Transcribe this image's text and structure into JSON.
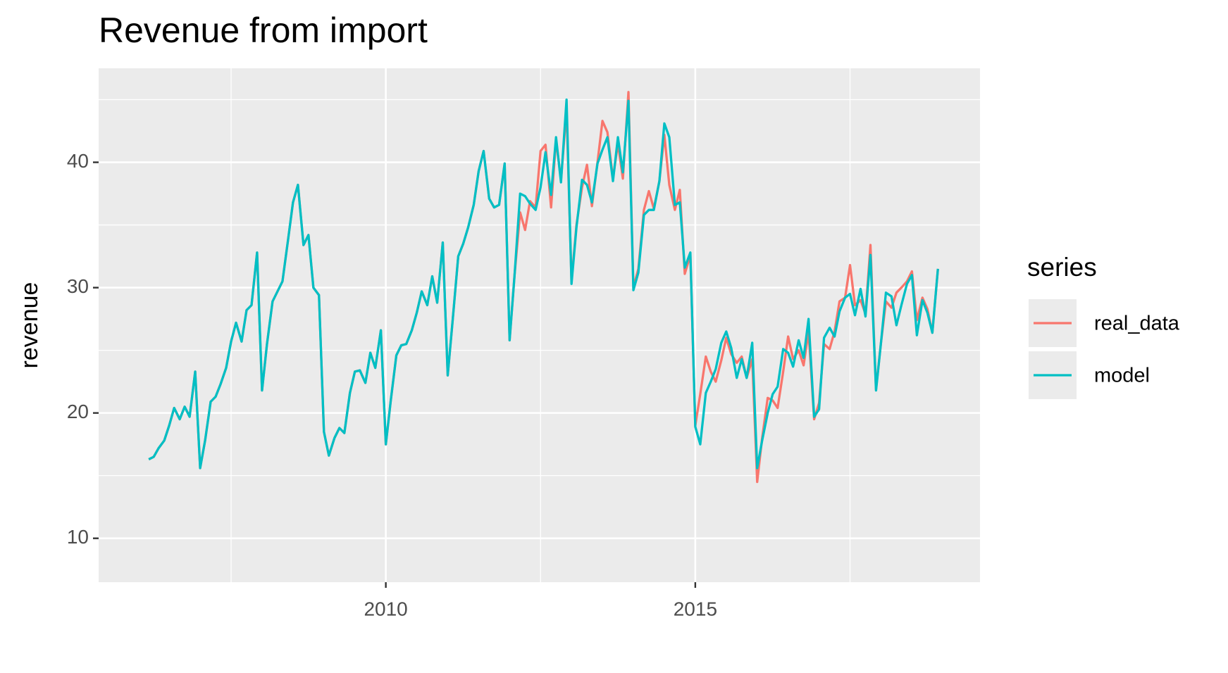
{
  "chart_data": {
    "type": "line",
    "title": "Revenue from import",
    "ylabel": "revenue",
    "legend_title": "series",
    "legend": "right",
    "grid": true,
    "xlim": [
      2005.36,
      2019.6
    ],
    "xticks": [
      2010,
      2015
    ],
    "xminor": [
      2007.5,
      2012.5,
      2017.5
    ],
    "ylim": [
      6.5,
      47.5
    ],
    "yticks": [
      10,
      20,
      30,
      40
    ],
    "yminor": [
      15,
      25,
      35,
      45
    ],
    "x": [
      2006.17,
      2006.25,
      2006.33,
      2006.42,
      2006.5,
      2006.58,
      2006.67,
      2006.75,
      2006.83,
      2006.92,
      2007,
      2007.08,
      2007.17,
      2007.25,
      2007.33,
      2007.42,
      2007.5,
      2007.58,
      2007.67,
      2007.75,
      2007.83,
      2007.92,
      2008,
      2008.08,
      2008.17,
      2008.25,
      2008.33,
      2008.42,
      2008.5,
      2008.58,
      2008.67,
      2008.75,
      2008.83,
      2008.92,
      2009,
      2009.08,
      2009.17,
      2009.25,
      2009.33,
      2009.42,
      2009.5,
      2009.58,
      2009.67,
      2009.75,
      2009.83,
      2009.92,
      2010,
      2010.08,
      2010.17,
      2010.25,
      2010.33,
      2010.42,
      2010.5,
      2010.58,
      2010.67,
      2010.75,
      2010.83,
      2010.92,
      2011,
      2011.08,
      2011.17,
      2011.25,
      2011.33,
      2011.42,
      2011.5,
      2011.58,
      2011.67,
      2011.75,
      2011.83,
      2011.92,
      2012,
      2012.08,
      2012.17,
      2012.25,
      2012.33,
      2012.42,
      2012.5,
      2012.58,
      2012.67,
      2012.75,
      2012.83,
      2012.92,
      2013,
      2013.08,
      2013.17,
      2013.25,
      2013.33,
      2013.42,
      2013.5,
      2013.58,
      2013.67,
      2013.75,
      2013.83,
      2013.92,
      2014,
      2014.08,
      2014.17,
      2014.25,
      2014.33,
      2014.42,
      2014.5,
      2014.58,
      2014.67,
      2014.75,
      2014.83,
      2014.92,
      2015,
      2015.08,
      2015.17,
      2015.25,
      2015.33,
      2015.42,
      2015.5,
      2015.58,
      2015.67,
      2015.75,
      2015.83,
      2015.92,
      2016,
      2016.08,
      2016.17,
      2016.25,
      2016.33,
      2016.42,
      2016.5,
      2016.58,
      2016.67,
      2016.75,
      2016.83,
      2016.92,
      2017,
      2017.08,
      2017.17,
      2017.25,
      2017.33,
      2017.42,
      2017.5,
      2017.58,
      2017.67,
      2017.75,
      2017.83,
      2017.92,
      2018,
      2018.08,
      2018.17,
      2018.25,
      2018.33,
      2018.42,
      2018.5,
      2018.58,
      2018.67,
      2018.75,
      2018.83,
      2018.92
    ],
    "series": [
      {
        "name": "real_data",
        "color": "#F8766D",
        "values": [
          16.3,
          16.5,
          17.2,
          17.8,
          19.0,
          20.4,
          19.5,
          20.5,
          19.7,
          23.3,
          15.6,
          17.8,
          20.9,
          21.3,
          22.3,
          23.6,
          25.7,
          27.2,
          25.7,
          28.2,
          28.6,
          32.8,
          21.8,
          25.5,
          28.9,
          29.7,
          30.5,
          33.8,
          36.8,
          38.2,
          33.4,
          34.2,
          30.0,
          29.4,
          18.5,
          16.6,
          18.0,
          18.8,
          18.4,
          21.6,
          23.3,
          23.4,
          22.4,
          24.8,
          23.6,
          26.6,
          17.5,
          21.0,
          24.6,
          25.4,
          25.5,
          26.6,
          28.0,
          29.7,
          28.6,
          30.9,
          28.8,
          33.6,
          23.0,
          27.4,
          32.5,
          33.5,
          34.8,
          36.6,
          39.3,
          40.9,
          37.1,
          36.4,
          36.6,
          39.9,
          25.8,
          31.0,
          36.0,
          34.6,
          36.9,
          36.4,
          40.9,
          41.4,
          36.4,
          41.8,
          38.6,
          44.2,
          30.5,
          35.0,
          38.0,
          39.8,
          36.5,
          40.0,
          43.3,
          42.4,
          38.7,
          41.5,
          38.7,
          45.6,
          30.0,
          31.5,
          36.2,
          37.7,
          36.3,
          38.5,
          42.2,
          38.2,
          36.2,
          37.8,
          31.1,
          32.6,
          19.0,
          21.5,
          24.5,
          23.3,
          22.5,
          24.2,
          26.0,
          24.7,
          24.0,
          24.5,
          22.8,
          24.3,
          14.5,
          18.0,
          21.2,
          21.0,
          20.4,
          23.3,
          26.1,
          24.3,
          25.0,
          23.8,
          26.5,
          19.5,
          20.8,
          25.5,
          25.1,
          26.5,
          28.9,
          29.2,
          31.8,
          28.6,
          29.0,
          27.9,
          33.4,
          21.9,
          25.6,
          28.9,
          28.4,
          29.6,
          30.0,
          30.5,
          31.3,
          27.4,
          29.2,
          28.3,
          26.4,
          31.5
        ]
      },
      {
        "name": "model",
        "color": "#00BFC4",
        "values": [
          16.3,
          16.5,
          17.2,
          17.8,
          19.0,
          20.4,
          19.5,
          20.5,
          19.7,
          23.3,
          15.6,
          17.8,
          20.9,
          21.3,
          22.3,
          23.6,
          25.7,
          27.2,
          25.7,
          28.2,
          28.6,
          32.8,
          21.8,
          25.5,
          28.9,
          29.7,
          30.5,
          33.8,
          36.8,
          38.2,
          33.4,
          34.2,
          30.0,
          29.4,
          18.5,
          16.6,
          18.0,
          18.8,
          18.4,
          21.6,
          23.3,
          23.4,
          22.4,
          24.8,
          23.6,
          26.6,
          17.5,
          21.0,
          24.6,
          25.4,
          25.5,
          26.6,
          28.0,
          29.7,
          28.6,
          30.9,
          28.8,
          33.6,
          23.0,
          27.4,
          32.5,
          33.5,
          34.8,
          36.6,
          39.3,
          40.9,
          37.1,
          36.4,
          36.6,
          39.9,
          25.8,
          31.0,
          37.5,
          37.3,
          36.7,
          36.2,
          38.0,
          40.8,
          37.4,
          42.0,
          38.4,
          45.0,
          30.3,
          34.8,
          38.6,
          38.2,
          36.8,
          39.9,
          41.0,
          42.0,
          38.5,
          42.0,
          39.2,
          44.9,
          29.8,
          31.2,
          35.8,
          36.2,
          36.2,
          38.5,
          43.1,
          42.0,
          36.6,
          36.8,
          31.6,
          32.8,
          18.9,
          17.5,
          21.6,
          22.5,
          23.5,
          25.6,
          26.5,
          25.2,
          22.8,
          24.3,
          22.8,
          25.6,
          15.6,
          17.8,
          20.0,
          21.5,
          22.1,
          25.1,
          24.8,
          23.7,
          25.8,
          24.4,
          27.5,
          19.7,
          20.3,
          26.0,
          26.8,
          26.1,
          28.1,
          29.2,
          29.5,
          27.8,
          29.9,
          27.7,
          32.6,
          21.8,
          25.6,
          29.6,
          29.3,
          27.0,
          28.6,
          30.3,
          31.0,
          26.2,
          29.0,
          28.0,
          26.4,
          31.5
        ]
      }
    ]
  }
}
